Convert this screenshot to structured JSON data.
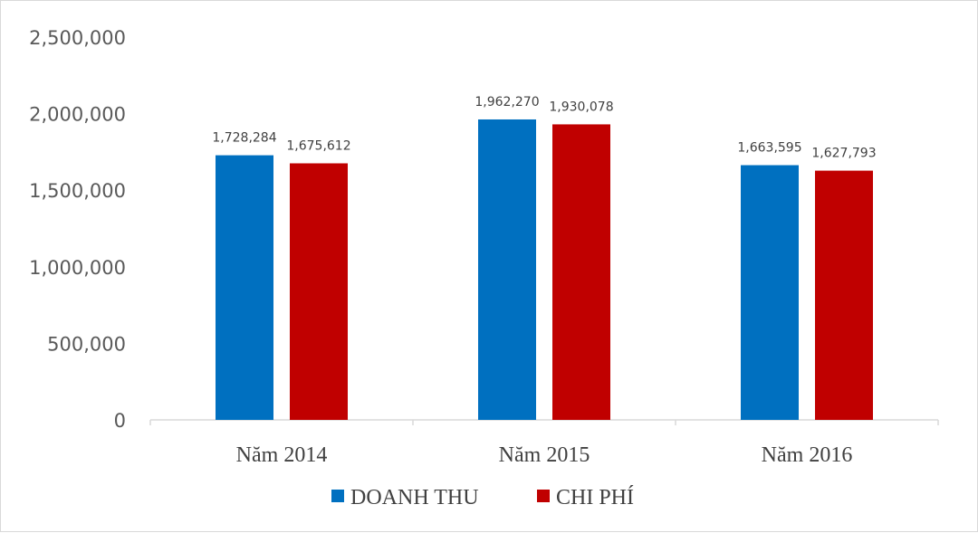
{
  "chart_data": {
    "type": "bar",
    "title": "",
    "xlabel": "",
    "ylabel": "",
    "categories": [
      "Năm 2014",
      "Năm 2015",
      "Năm 2016"
    ],
    "series": [
      {
        "name": "DOANH THU",
        "color": "#0070c0",
        "values": [
          1728284,
          1962270,
          1663595
        ],
        "labels": [
          "1,728,284",
          "1,962,270",
          "1,663,595"
        ]
      },
      {
        "name": "CHI PHÍ",
        "color": "#c00000",
        "values": [
          1675612,
          1930078,
          1627793
        ],
        "labels": [
          "1,675,612",
          "1,930,078",
          "1,627,793"
        ]
      }
    ],
    "ylim": [
      0,
      2500000
    ],
    "yticks": [
      0,
      500000,
      1000000,
      1500000,
      2000000,
      2500000
    ],
    "ytick_labels": [
      "0",
      "500,000",
      "1,000,000",
      "1,500,000",
      "2,000,000",
      "2,500,000"
    ],
    "grid": false,
    "legend_position": "bottom-center"
  }
}
